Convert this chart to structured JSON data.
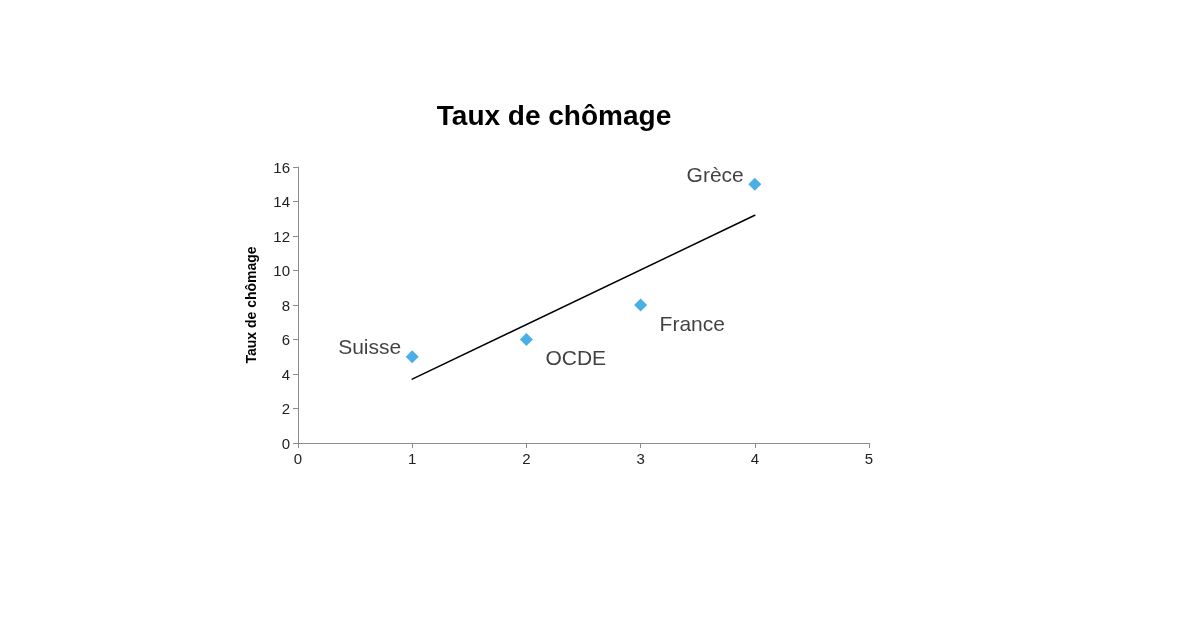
{
  "chart_data": {
    "type": "scatter",
    "title": "Taux de chômage",
    "ylabel": "Taux de chômage",
    "series": [
      {
        "color": "#1e9be0",
        "marker": "diamond",
        "x": [
          1,
          2,
          3,
          4
        ],
        "values": [
          5,
          6,
          8,
          15
        ]
      },
      {
        "type": "line",
        "color": "#000000",
        "marker": "none",
        "line_style": "solid",
        "x": [
          1,
          4
        ],
        "values": [
          3.7,
          13.2
        ]
      }
    ],
    "annotations": [
      {
        "text": "Suisse",
        "x": 1,
        "y": 5
      },
      {
        "text": "OCDE",
        "x": 2,
        "y": 6
      },
      {
        "text": "France",
        "x": 3,
        "y": 8
      },
      {
        "text": "Grèce",
        "x": 4,
        "y": 15
      }
    ],
    "xlim": [
      0,
      5
    ],
    "xticks": [
      0,
      1,
      2,
      3,
      4,
      5
    ],
    "ylim": [
      0,
      16
    ],
    "yticks": [
      0,
      2,
      4,
      6,
      8,
      10,
      12,
      14,
      16
    ],
    "grid": false
  }
}
